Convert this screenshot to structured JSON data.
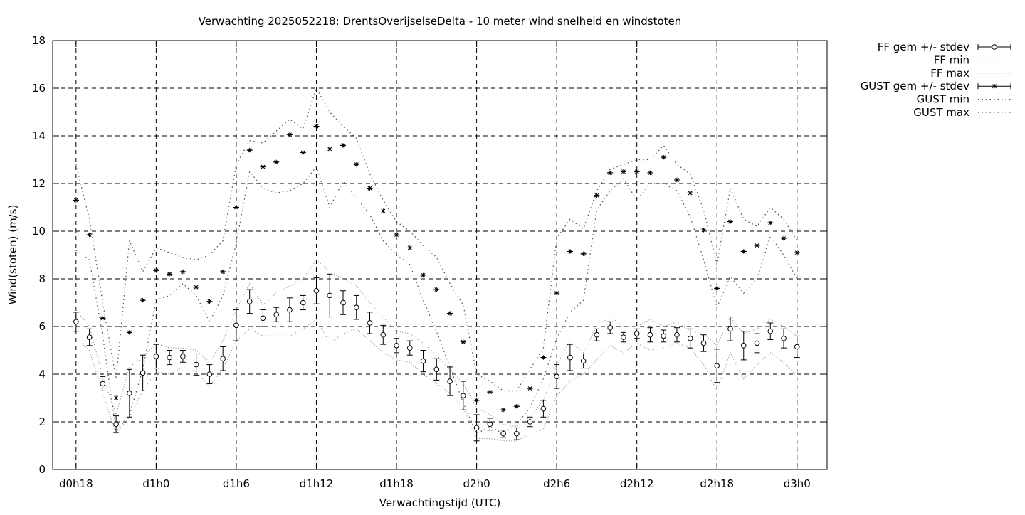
{
  "chart_data": {
    "type": "line",
    "title": "Verwachting 2025052218: DrentsOverijselseDelta - 10 meter wind snelheid en windstoten",
    "xlabel": "Verwachtingstijd (UTC)",
    "ylabel": "Wind(stoten) (m/s)",
    "ylim": [
      0,
      18
    ],
    "xlim": [
      -1.75,
      56.25
    ],
    "yticks": [
      0,
      2,
      4,
      6,
      8,
      10,
      12,
      14,
      16,
      18
    ],
    "xticks": [
      {
        "label": "d0h18",
        "x": 0
      },
      {
        "label": "d1h0",
        "x": 6
      },
      {
        "label": "d1h6",
        "x": 12
      },
      {
        "label": "d1h12",
        "x": 18
      },
      {
        "label": "d1h18",
        "x": 24
      },
      {
        "label": "d2h0",
        "x": 30
      },
      {
        "label": "d2h6",
        "x": 36
      },
      {
        "label": "d2h12",
        "x": 42
      },
      {
        "label": "d2h18",
        "x": 48
      },
      {
        "label": "d3h0",
        "x": 54
      }
    ],
    "grid": true,
    "legend_position": "outside-top-right",
    "x": [
      0,
      1,
      2,
      3,
      4,
      5,
      6,
      7,
      8,
      9,
      10,
      11,
      12,
      13,
      14,
      15,
      16,
      17,
      18,
      19,
      20,
      21,
      22,
      23,
      24,
      25,
      26,
      27,
      28,
      29,
      30,
      31,
      32,
      33,
      34,
      35,
      36,
      37,
      38,
      39,
      40,
      41,
      42,
      43,
      44,
      45,
      46,
      47,
      48,
      49,
      50,
      51,
      52,
      53,
      54
    ],
    "series": [
      {
        "name": "FF gem +/- stdev",
        "style": "errorbars",
        "marker": "circle",
        "values": [
          6.2,
          5.55,
          3.6,
          1.9,
          3.2,
          4.05,
          4.75,
          4.7,
          4.75,
          4.4,
          4.0,
          4.65,
          6.05,
          7.05,
          6.35,
          6.5,
          6.7,
          7.0,
          7.5,
          7.3,
          7.0,
          6.8,
          6.15,
          5.65,
          5.2,
          5.1,
          4.55,
          4.2,
          3.7,
          3.1,
          1.75,
          1.9,
          1.5,
          1.5,
          2.0,
          2.55,
          3.9,
          4.7,
          4.55,
          5.65,
          5.95,
          5.55,
          5.7,
          5.65,
          5.6,
          5.65,
          5.5,
          5.3,
          4.35,
          5.9,
          5.2,
          5.3,
          5.8,
          5.5,
          5.15
        ],
        "stdev": [
          0.4,
          0.35,
          0.3,
          0.35,
          1.0,
          0.75,
          0.5,
          0.3,
          0.25,
          0.45,
          0.4,
          0.5,
          0.65,
          0.5,
          0.35,
          0.3,
          0.5,
          0.3,
          0.55,
          0.9,
          0.5,
          0.5,
          0.45,
          0.4,
          0.3,
          0.3,
          0.45,
          0.45,
          0.6,
          0.6,
          0.55,
          0.25,
          0.15,
          0.25,
          0.2,
          0.35,
          0.5,
          0.55,
          0.3,
          0.25,
          0.25,
          0.2,
          0.2,
          0.3,
          0.25,
          0.3,
          0.4,
          0.35,
          0.7,
          0.5,
          0.6,
          0.4,
          0.35,
          0.4,
          0.45
        ]
      },
      {
        "name": "FF min",
        "style": "dotted",
        "values": [
          5.5,
          5.0,
          3.2,
          1.5,
          2.2,
          3.3,
          4.1,
          4.0,
          4.3,
          4.1,
          3.5,
          4.2,
          5.4,
          5.9,
          5.6,
          5.6,
          5.6,
          5.9,
          6.3,
          5.3,
          5.7,
          5.9,
          5.4,
          4.9,
          4.6,
          4.5,
          4.0,
          3.6,
          3.2,
          2.6,
          1.3,
          1.3,
          1.2,
          1.2,
          1.5,
          1.7,
          3.1,
          3.7,
          4.0,
          4.6,
          5.2,
          4.9,
          5.3,
          5.0,
          5.1,
          5.3,
          5.1,
          4.4,
          3.3,
          4.9,
          3.8,
          4.4,
          4.9,
          4.5,
          3.9
        ]
      },
      {
        "name": "FF max",
        "style": "dotted",
        "values": [
          6.7,
          6.0,
          3.9,
          2.3,
          4.3,
          4.7,
          5.3,
          5.1,
          5.1,
          5.0,
          4.5,
          5.4,
          6.7,
          7.8,
          6.9,
          7.4,
          7.7,
          8.0,
          8.8,
          8.3,
          8.0,
          7.7,
          7.0,
          6.4,
          5.8,
          5.7,
          5.3,
          4.8,
          4.2,
          3.6,
          2.6,
          2.3,
          1.9,
          1.8,
          2.2,
          2.9,
          4.4,
          5.4,
          4.9,
          6.0,
          6.4,
          6.0,
          6.0,
          6.3,
          6.0,
          6.2,
          5.8,
          5.7,
          5.2,
          6.4,
          5.7,
          5.9,
          6.3,
          6.0,
          5.6
        ]
      },
      {
        "name": "GUST gem +/- stdev",
        "style": "errorbars",
        "marker": "star",
        "values": [
          11.3,
          9.85,
          6.35,
          3.0,
          5.75,
          7.1,
          8.35,
          8.2,
          8.3,
          7.65,
          7.05,
          8.3,
          11.0,
          13.4,
          12.7,
          12.9,
          14.05,
          13.3,
          14.4,
          13.45,
          13.6,
          12.8,
          11.8,
          10.85,
          9.85,
          9.3,
          8.15,
          7.55,
          6.55,
          5.35,
          2.9,
          3.25,
          2.5,
          2.65,
          3.4,
          4.7,
          7.4,
          9.15,
          9.05,
          11.5,
          12.45,
          12.5,
          12.5,
          12.45,
          13.1,
          12.15,
          11.6,
          10.05,
          7.6,
          10.4,
          9.15,
          9.4,
          10.35,
          9.7,
          9.1
        ]
      },
      {
        "name": "GUST min",
        "style": "dotted",
        "values": [
          9.2,
          8.8,
          5.6,
          1.6,
          2.3,
          4.2,
          7.1,
          7.3,
          7.8,
          7.3,
          6.2,
          7.3,
          9.5,
          12.5,
          11.8,
          11.6,
          11.7,
          12.0,
          12.7,
          11.0,
          12.1,
          11.4,
          10.7,
          9.6,
          9.0,
          8.6,
          7.1,
          5.8,
          4.3,
          2.8,
          1.5,
          1.8,
          1.5,
          1.9,
          2.6,
          3.8,
          5.5,
          6.6,
          7.1,
          10.9,
          11.7,
          12.2,
          11.3,
          12.0,
          12.0,
          11.7,
          10.6,
          8.8,
          6.8,
          8.1,
          7.4,
          8.0,
          9.8,
          9.0,
          8.0
        ]
      },
      {
        "name": "GUST max",
        "style": "dotted",
        "values": [
          12.8,
          10.5,
          7.0,
          3.8,
          9.6,
          8.3,
          9.3,
          9.1,
          8.9,
          8.8,
          9.0,
          9.6,
          12.8,
          13.8,
          13.7,
          14.2,
          14.7,
          14.3,
          16.0,
          15.0,
          14.4,
          13.9,
          12.4,
          11.3,
          10.4,
          10.0,
          9.4,
          8.9,
          7.8,
          6.9,
          4.0,
          3.7,
          3.3,
          3.3,
          4.2,
          5.1,
          9.7,
          10.5,
          10.1,
          11.7,
          12.6,
          12.8,
          13.0,
          13.0,
          13.6,
          12.8,
          12.4,
          10.9,
          8.6,
          11.8,
          10.5,
          10.2,
          11.0,
          10.5,
          9.6
        ]
      }
    ]
  }
}
